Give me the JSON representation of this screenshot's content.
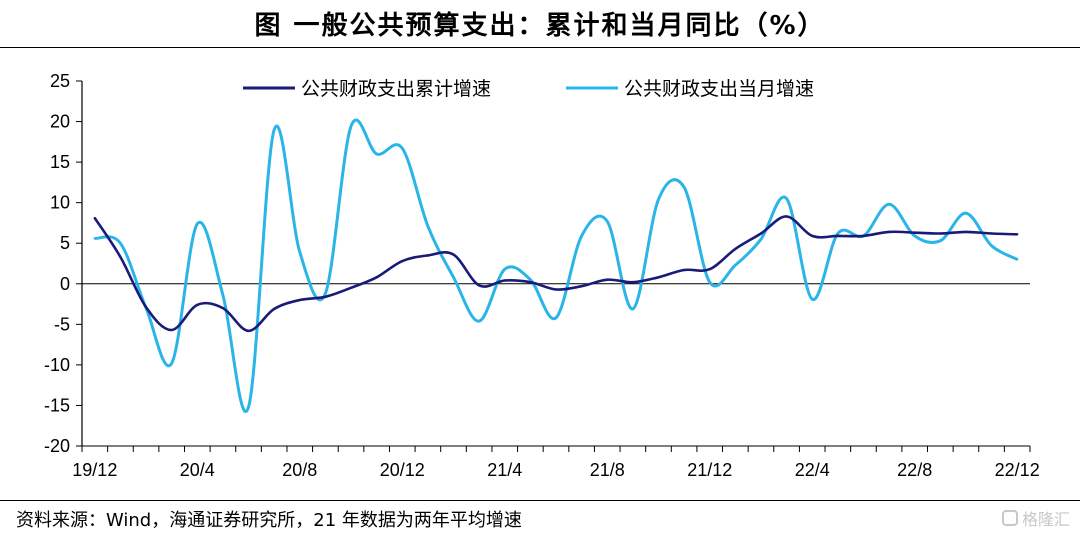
{
  "title": "图  一般公共预算支出：累计和当月同比（%）",
  "source": "资料来源：Wind，海通证券研究所，21 年数据为两年平均增速",
  "watermark": "格隆汇",
  "colors": {
    "cumulative": "#1a1a7a",
    "monthly": "#29b5e8"
  },
  "chart_data": {
    "type": "line",
    "title": "一般公共预算支出：累计和当月同比（%）",
    "ylabel": "",
    "xlabel": "",
    "ylim": [
      -20,
      25
    ],
    "yticks": [
      25,
      20,
      15,
      10,
      5,
      0,
      -5,
      -10,
      -15,
      -20
    ],
    "grid": false,
    "legend_position": "top",
    "x": [
      "19/12",
      "20/1",
      "20/2",
      "20/3",
      "20/4",
      "20/5",
      "20/6",
      "20/7",
      "20/8",
      "20/9",
      "20/10",
      "20/11",
      "20/12",
      "21/1",
      "21/2",
      "21/3",
      "21/4",
      "21/5",
      "21/6",
      "21/7",
      "21/8",
      "21/9",
      "21/10",
      "21/11",
      "21/12",
      "22/1",
      "22/2",
      "22/3",
      "22/4",
      "22/5",
      "22/6",
      "22/7",
      "22/8",
      "22/9",
      "22/10",
      "22/11",
      "22/12"
    ],
    "xtick_labels": [
      "19/12",
      "20/4",
      "20/8",
      "20/12",
      "21/4",
      "21/8",
      "21/12",
      "22/4",
      "22/8",
      "22/12"
    ],
    "series": [
      {
        "name": "公共财政支出累计增速",
        "color": "#1a1a7a",
        "values": [
          8.1,
          3.3,
          -2.9,
          -5.7,
          -2.6,
          -3.0,
          -5.8,
          -3.1,
          -2.0,
          -1.6,
          -0.5,
          0.8,
          2.8,
          3.5,
          3.6,
          -0.2,
          0.4,
          0.2,
          -0.7,
          -0.3,
          0.5,
          0.2,
          0.8,
          1.7,
          1.8,
          4.3,
          6.2,
          8.3,
          5.9,
          5.9,
          5.9,
          6.4,
          6.3,
          6.2,
          6.4,
          6.2,
          6.1
        ]
      },
      {
        "name": "公共财政支出当月增速",
        "color": "#29b5e8",
        "values": [
          5.6,
          5.0,
          -3.0,
          -9.8,
          7.4,
          -1.4,
          -15.2,
          19.0,
          3.9,
          -1.2,
          19.4,
          16.0,
          16.7,
          7.1,
          0.8,
          -4.6,
          1.8,
          0.5,
          -4.2,
          5.9,
          7.7,
          -3.1,
          10.4,
          11.9,
          0.2,
          2.3,
          5.5,
          10.5,
          -1.9,
          6.2,
          5.9,
          9.8,
          5.9,
          5.3,
          8.7,
          4.7,
          3.0
        ]
      }
    ]
  }
}
